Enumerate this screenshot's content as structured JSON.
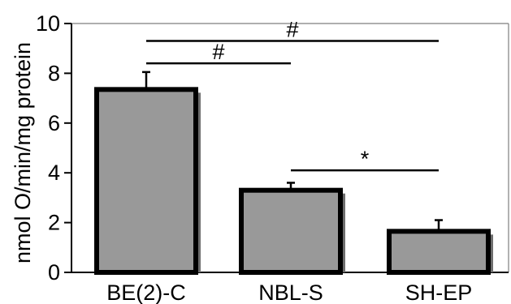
{
  "chart_data": {
    "type": "bar",
    "categories": [
      "BE(2)-C",
      "NBL-S",
      "SH-EP"
    ],
    "values": [
      7.35,
      3.3,
      1.65
    ],
    "errors": [
      0.7,
      0.3,
      0.45
    ],
    "ylabel": "nmol O/min/mg protein",
    "xlabel": "",
    "ylim": [
      0,
      10
    ],
    "yticks": [
      "0",
      "2",
      "4",
      "6",
      "8",
      "10"
    ],
    "grid": false,
    "bar_color": "#999999",
    "shadow_color": "#6e6e6e",
    "significance": [
      {
        "from": 0,
        "to": 2,
        "label": "#",
        "y": 9.3
      },
      {
        "from": 0,
        "to": 1,
        "label": "#",
        "y": 8.4
      },
      {
        "from": 1,
        "to": 2,
        "label": "*",
        "y": 4.1
      }
    ]
  }
}
